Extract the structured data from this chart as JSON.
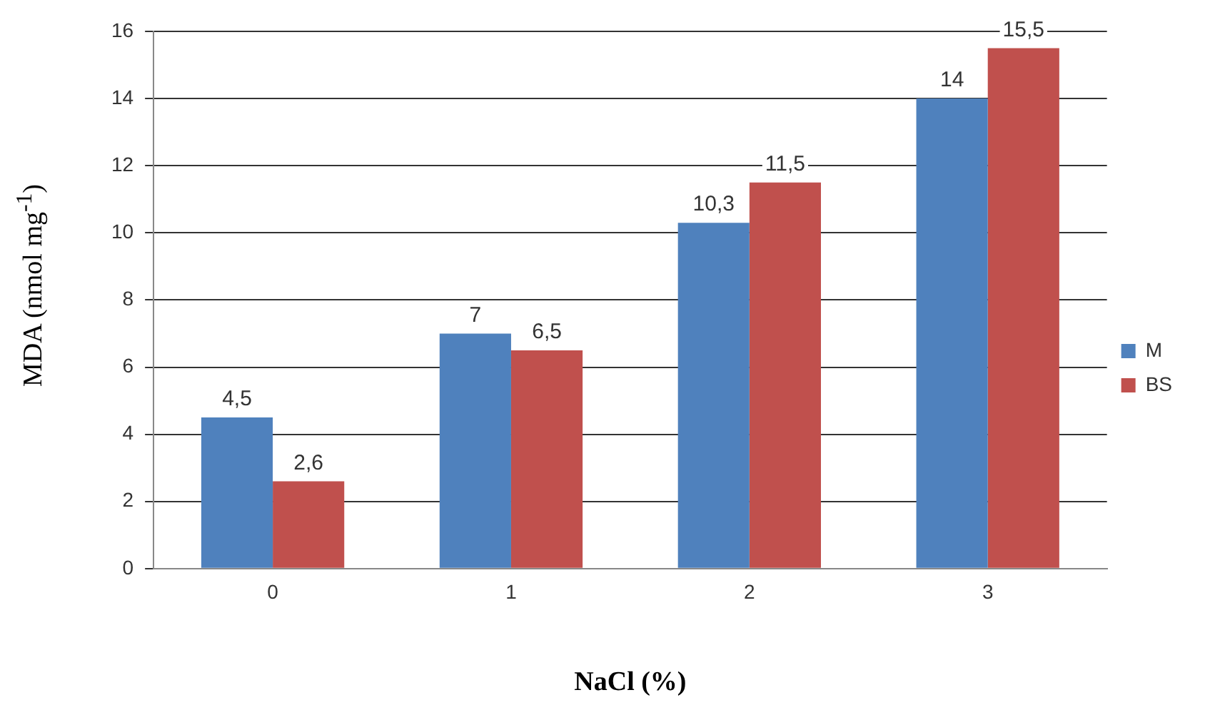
{
  "chart_data": {
    "type": "bar",
    "xlabel": "NaCl (%)",
    "ylabel": "MDA (nmol  mg$^{-1}$)",
    "categories": [
      "0",
      "1",
      "2",
      "3"
    ],
    "series": [
      {
        "name": "M",
        "color": "#4f81bd",
        "values": [
          4.5,
          7,
          10.3,
          14
        ],
        "value_labels": [
          "4,5",
          "7",
          "10,3",
          "14"
        ]
      },
      {
        "name": "BS",
        "color": "#c0504d",
        "values": [
          2.6,
          6.5,
          11.5,
          15.5
        ],
        "value_labels": [
          "2,6",
          "6,5",
          "11,5",
          "15,5"
        ]
      }
    ],
    "ylim": [
      0,
      16
    ],
    "yticks": [
      0,
      2,
      4,
      6,
      8,
      10,
      12,
      14,
      16
    ],
    "grid": "y",
    "legend": "right"
  }
}
